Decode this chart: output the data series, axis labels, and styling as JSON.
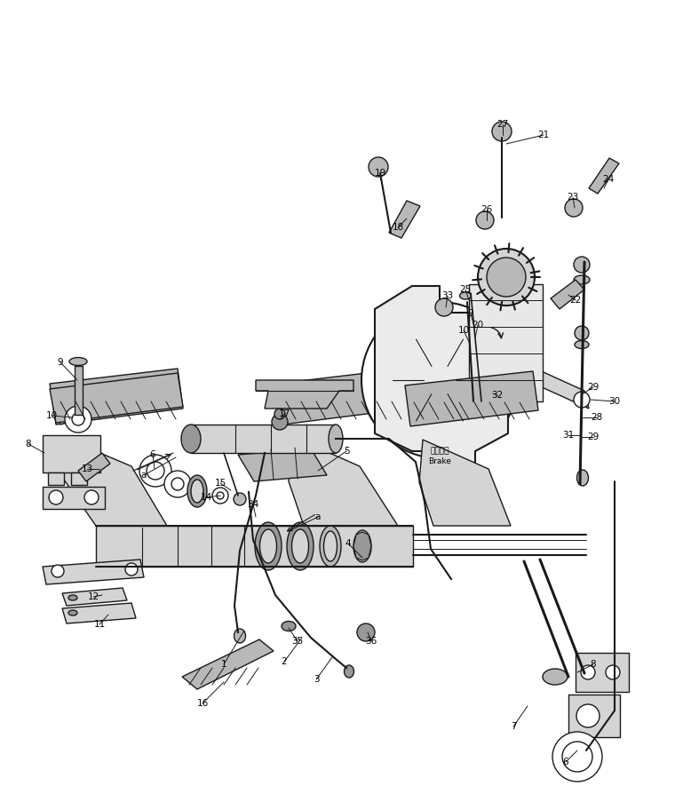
{
  "figsize": [
    7.69,
    8.94
  ],
  "dpi": 100,
  "bg": "#ffffff",
  "lc": "#1a1a1a",
  "fl": "#d4d4d4",
  "fm": "#b8b8b8",
  "fd": "#989898",
  "brake_jp": "ブレーキ",
  "brake_en": "Brake"
}
